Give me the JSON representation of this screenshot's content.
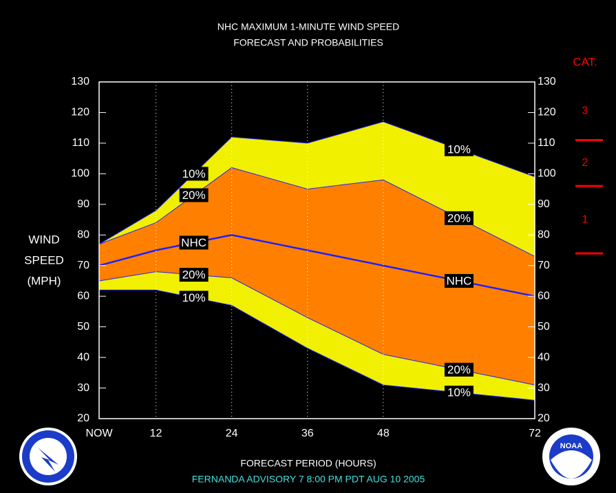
{
  "chart_data": {
    "type": "band",
    "title": [
      "NHC MAXIMUM 1-MINUTE WIND SPEED",
      "FORECAST AND PROBABILITIES"
    ],
    "y_label": [
      "WIND",
      "SPEED",
      "(MPH)"
    ],
    "x_label": "FORECAST PERIOD (HOURS)",
    "footer": "FERNANDA   ADVISORY  7 8:00  PM  PDT  AUG  10  2005",
    "x": [
      3,
      12,
      24,
      36,
      48,
      72
    ],
    "series": [
      {
        "name": "10%",
        "color": "#f0f000",
        "values": [
          77,
          88,
          112,
          110,
          117,
          99
        ]
      },
      {
        "name": "20%",
        "color": "#ff8000",
        "values": [
          77,
          84,
          102,
          95,
          98,
          73
        ]
      },
      {
        "name": "NHC",
        "color": "#2020ff",
        "values": [
          70,
          75,
          80,
          75,
          70,
          60
        ]
      },
      {
        "name": "20%",
        "color": "#ff8000",
        "values": [
          65,
          68,
          66,
          53,
          41,
          31
        ]
      },
      {
        "name": "10%",
        "color": "#f0f000",
        "values": [
          62,
          62,
          57,
          43,
          31,
          26
        ]
      }
    ],
    "line_color": "#2020ff",
    "xlim": [
      3,
      72
    ],
    "xticks": [
      {
        "value": 3,
        "label": "NOW"
      },
      12,
      24,
      36,
      48,
      72
    ],
    "ylim": [
      20,
      130
    ],
    "yticks": [
      20,
      30,
      40,
      50,
      60,
      70,
      80,
      90,
      100,
      110,
      120,
      130
    ],
    "category_scale": {
      "title": "CAT.",
      "color": "#ff0000",
      "thresholds": [
        74,
        96,
        111
      ],
      "labels": [
        "1",
        "2",
        "3"
      ]
    }
  }
}
